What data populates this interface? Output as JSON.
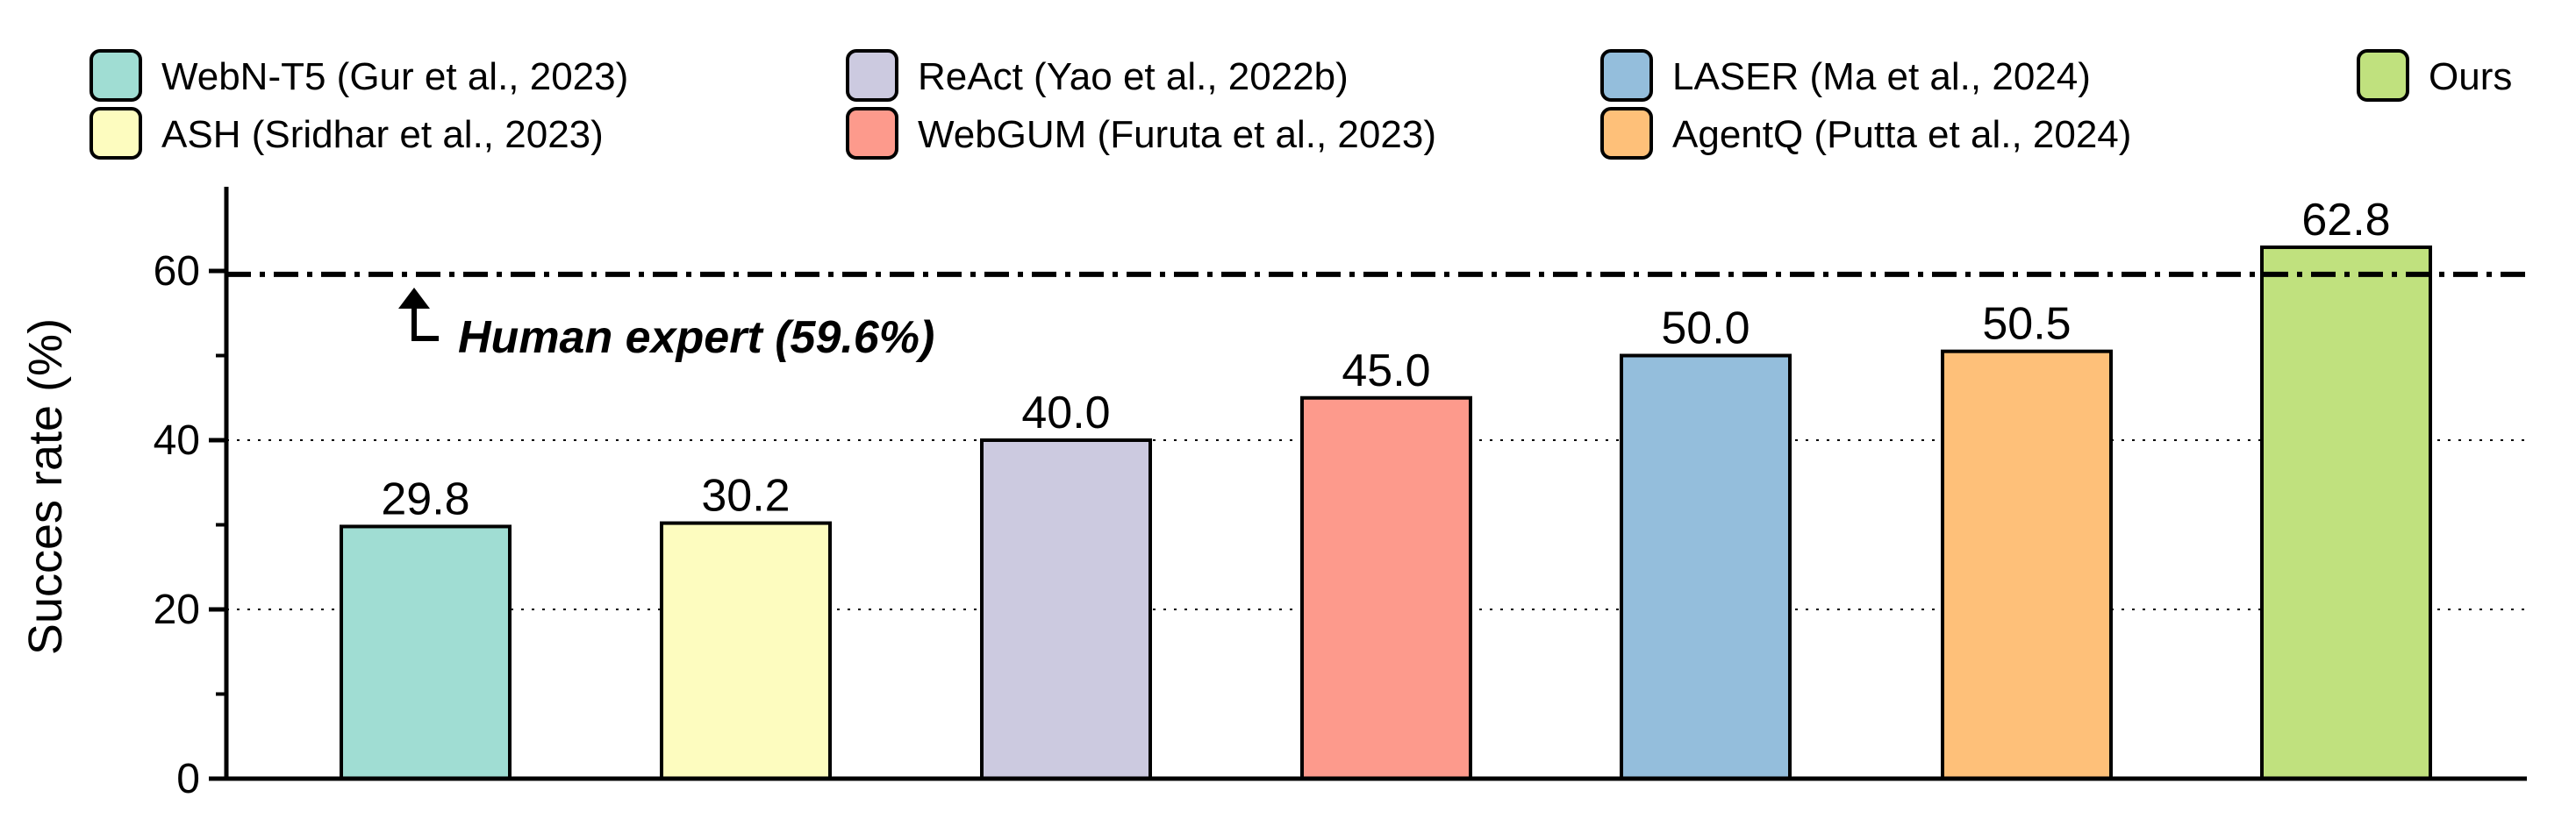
{
  "chart_data": {
    "type": "bar",
    "categories": [
      "WebN-T5 (Gur et al., 2023)",
      "ASH (Sridhar et al., 2023)",
      "ReAct (Yao et al., 2022b)",
      "WebGUM (Furuta et al., 2023)",
      "LASER (Ma et al., 2024)",
      "AgentQ (Putta et al., 2024)",
      "Ours"
    ],
    "values": [
      29.8,
      30.2,
      40.0,
      45.0,
      50.0,
      50.5,
      62.8
    ],
    "value_labels": [
      "29.8",
      "30.2",
      "40.0",
      "45.0",
      "50.0",
      "50.5",
      "62.8"
    ],
    "colors": [
      "#a0ddd3",
      "#fdfcbf",
      "#cccae0",
      "#fd9a8c",
      "#94bedc",
      "#fec079",
      "#c0e17e"
    ],
    "ylabel": "Succes rate (%)",
    "xlabel": "",
    "ylim": [
      0,
      70
    ],
    "yticks": [
      0,
      20,
      40,
      60
    ],
    "ytick_labels": [
      "0",
      "20",
      "40",
      "60"
    ],
    "grid": "dotted horizontal at 20 and 40",
    "legend_position": "top",
    "reference_line": {
      "value": 59.6,
      "label": "Human expert (59.6%)",
      "style": "dash-dot"
    }
  }
}
